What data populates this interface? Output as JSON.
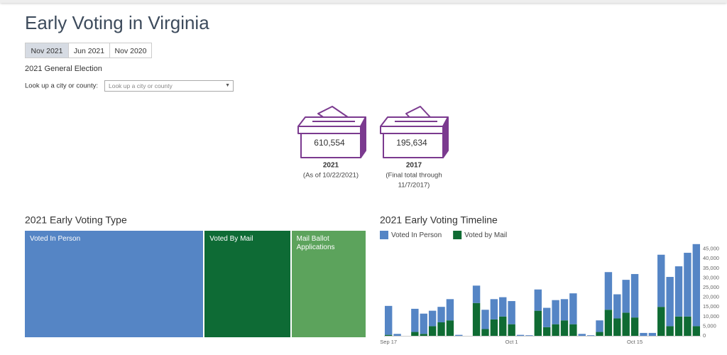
{
  "header": {
    "title": "Early Voting in Virginia"
  },
  "tabs": [
    "Nov 2021",
    "Jun 2021",
    "Nov 2020"
  ],
  "election": "2021 General Election",
  "lookup": {
    "label": "Look up a city or county:",
    "placeholder": "Look up a city or county"
  },
  "totals": [
    {
      "value": "610,554",
      "year": "2021",
      "note": [
        "(As of 10/22/2021)"
      ]
    },
    {
      "value": "195,634",
      "year": "2017",
      "note": [
        "(Final total through",
        "11/7/2017)"
      ]
    }
  ],
  "chart_data": [
    {
      "type": "treemap",
      "title": "2021 Early Voting Type",
      "categories": [
        "Voted In Person",
        "Voted By Mail",
        "Mail Ballot Applications"
      ],
      "values": [
        412000,
        199000,
        173000
      ],
      "colors": [
        "#5585c5",
        "#0e6b35",
        "#5ca35c"
      ]
    },
    {
      "type": "stacked_bar",
      "title": "2021 Early Voting Timeline",
      "categories": [
        "Sep 17",
        null,
        null,
        null,
        null,
        null,
        null,
        null,
        null,
        null,
        null,
        null,
        null,
        null,
        "Oct 1",
        null,
        null,
        null,
        null,
        null,
        null,
        null,
        null,
        null,
        null,
        null,
        null,
        null,
        "Oct 15",
        null,
        null,
        null,
        null,
        null,
        null,
        null
      ],
      "series": [
        {
          "name": "Voted by Mail",
          "color": "#0f6b33",
          "values": [
            500,
            0,
            0,
            2000,
            1000,
            5000,
            7000,
            8000,
            0,
            0,
            17000,
            3500,
            8500,
            10000,
            6000,
            0,
            0,
            13000,
            4500,
            6000,
            8000,
            6000,
            0,
            0,
            2000,
            13500,
            9000,
            12000,
            9500,
            0,
            0,
            15000,
            5000,
            10000,
            10000,
            5000
          ]
        },
        {
          "name": "Voted In Person",
          "color": "#5585c5",
          "values": [
            15000,
            1000,
            0,
            12000,
            10500,
            8000,
            8000,
            11000,
            500,
            0,
            9000,
            10000,
            10500,
            10000,
            12000,
            500,
            300,
            11000,
            10000,
            12500,
            11000,
            16000,
            1000,
            300,
            6000,
            19500,
            12500,
            17000,
            22500,
            1500,
            1500,
            27000,
            25500,
            26000,
            33000,
            42500
          ]
        }
      ],
      "legend_order": [
        1,
        0
      ],
      "ylim": [
        0,
        50000
      ],
      "yticks": [
        0,
        {
          "value": 5000,
          "label": "5,000"
        },
        {
          "value": 10000,
          "label": "10,000"
        },
        {
          "value": 15000,
          "label": "15,000"
        },
        {
          "value": 20000,
          "label": "20,000"
        },
        {
          "value": 25000,
          "label": "25,000"
        },
        {
          "value": 30000,
          "label": "30,000"
        },
        {
          "value": 35000,
          "label": "35,000"
        },
        {
          "value": 40000,
          "label": "40,000"
        },
        {
          "value": 45000,
          "label": "45,000"
        }
      ],
      "grid": false
    }
  ]
}
